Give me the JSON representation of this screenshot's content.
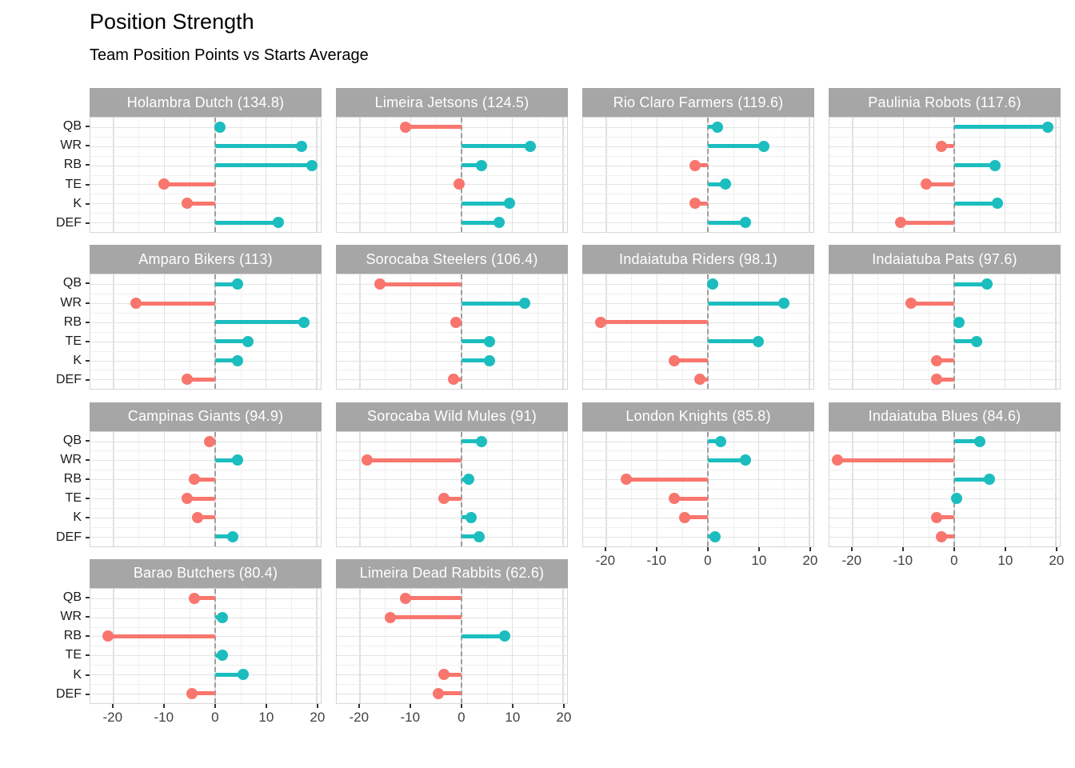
{
  "title": "Position Strength",
  "subtitle": "Team Position Points vs Starts Average",
  "chart_data": {
    "type": "bar",
    "subtype": "faceted-lollipop",
    "positions": [
      "QB",
      "WR",
      "RB",
      "TE",
      "K",
      "DEF"
    ],
    "x_axis": {
      "ticks": [
        -20,
        -10,
        0,
        10,
        20
      ],
      "tick_labels": [
        "-20",
        "-10",
        "0",
        "10",
        "20"
      ],
      "minor_ticks": [
        -15,
        -5,
        5,
        15
      ],
      "range": [
        -24.5,
        20.8
      ]
    },
    "legend": "none",
    "grid": "on",
    "colors": {
      "positive": "#1cbdbe",
      "negative": "#f8766d",
      "strip_bg": "#a6a6a6",
      "strip_text": "#ffffff",
      "zero_line": "#9e9e9e"
    },
    "facets": [
      {
        "team": "Holambra Dutch",
        "total": 134.8,
        "label": "Holambra Dutch (134.8)",
        "values": [
          1,
          17,
          19,
          -10,
          -5.5,
          12.5
        ]
      },
      {
        "team": "Limeira Jetsons",
        "total": 124.5,
        "label": "Limeira Jetsons (124.5)",
        "values": [
          -11,
          13.5,
          4,
          -0.5,
          9.5,
          7.5
        ]
      },
      {
        "team": "Rio Claro Farmers",
        "total": 119.6,
        "label": "Rio Claro Farmers (119.6)",
        "values": [
          2,
          11,
          -2.5,
          3.5,
          -2.5,
          7.5
        ]
      },
      {
        "team": "Paulinia Robots",
        "total": 117.6,
        "label": "Paulinia Robots (117.6)",
        "values": [
          18.5,
          -2.5,
          8,
          -5.5,
          8.5,
          -10.5
        ]
      },
      {
        "team": "Amparo Bikers",
        "total": 113,
        "label": "Amparo Bikers (113)",
        "values": [
          4.5,
          -15.5,
          17.5,
          6.5,
          4.5,
          -5.5
        ]
      },
      {
        "team": "Sorocaba Steelers",
        "total": 106.4,
        "label": "Sorocaba Steelers (106.4)",
        "values": [
          -16,
          12.5,
          -1,
          5.5,
          5.5,
          -1.5
        ]
      },
      {
        "team": "Indaiatuba Riders",
        "total": 98.1,
        "label": "Indaiatuba Riders (98.1)",
        "values": [
          1,
          15,
          -21,
          10,
          -6.5,
          -1.5
        ]
      },
      {
        "team": "Indaiatuba Pats",
        "total": 97.6,
        "label": "Indaiatuba Pats (97.6)",
        "values": [
          6.5,
          -8.5,
          1,
          4.5,
          -3.5,
          -3.5
        ]
      },
      {
        "team": "Campinas Giants",
        "total": 94.9,
        "label": "Campinas Giants (94.9)",
        "values": [
          -1,
          4.5,
          -4,
          -5.5,
          -3.5,
          3.5
        ]
      },
      {
        "team": "Sorocaba Wild Mules",
        "total": 91,
        "label": "Sorocaba Wild Mules (91)",
        "values": [
          4,
          -18.5,
          1.5,
          -3.5,
          2,
          3.5
        ]
      },
      {
        "team": "London Knights",
        "total": 85.8,
        "label": "London Knights (85.8)",
        "values": [
          2.5,
          7.5,
          -16,
          -6.5,
          -4.5,
          1.5
        ]
      },
      {
        "team": "Indaiatuba Blues",
        "total": 84.6,
        "label": "Indaiatuba Blues (84.6)",
        "values": [
          5,
          -23,
          7,
          0.5,
          -3.5,
          -2.5
        ]
      },
      {
        "team": "Barao Butchers",
        "total": 80.4,
        "label": "Barao Butchers (80.4)",
        "values": [
          -4,
          1.5,
          -21,
          1.5,
          5.5,
          -4.5
        ]
      },
      {
        "team": "Limeira Dead Rabbits",
        "total": 62.6,
        "label": "Limeira Dead Rabbits (62.6)",
        "values": [
          -11,
          -14,
          8.5,
          null,
          -3.5,
          -4.5
        ]
      }
    ]
  }
}
